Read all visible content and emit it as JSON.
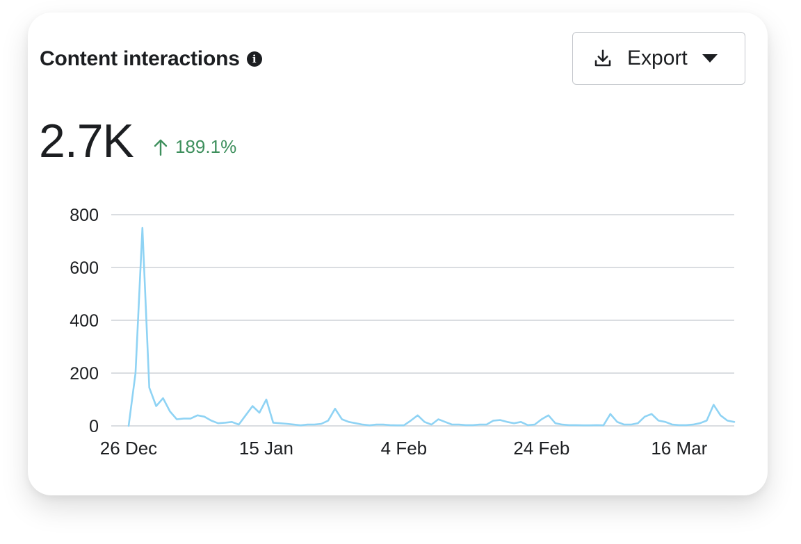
{
  "card": {
    "title": "Content interactions",
    "info_icon": "info-icon",
    "export_label": "Export",
    "export_icon": "download-icon",
    "dropdown_icon": "caret-down-icon",
    "total_value": "2.7K",
    "change_icon": "arrow-up-icon",
    "change_percent": "189.1%"
  },
  "colors": {
    "line": "#8fd3f4",
    "grid": "#dadde1",
    "positive": "#3d8f5c",
    "text": "#1c1e21"
  },
  "chart_data": {
    "type": "line",
    "title": "Content interactions",
    "xlabel": "",
    "ylabel": "",
    "ylim": [
      0,
      800
    ],
    "yticks": [
      "0",
      "200",
      "400",
      "600",
      "800"
    ],
    "xticks": [
      "26 Dec",
      "15 Jan",
      "4 Feb",
      "24 Feb",
      "16 Mar"
    ],
    "grid": true,
    "series": [
      {
        "name": "Content interactions",
        "values": [
          0,
          200,
          750,
          145,
          75,
          105,
          55,
          25,
          28,
          28,
          40,
          35,
          20,
          10,
          12,
          15,
          5,
          40,
          75,
          50,
          100,
          12,
          10,
          8,
          5,
          2,
          5,
          5,
          8,
          20,
          65,
          25,
          15,
          10,
          5,
          2,
          5,
          5,
          3,
          2,
          2,
          20,
          40,
          15,
          5,
          25,
          15,
          5,
          5,
          3,
          3,
          5,
          5,
          20,
          22,
          15,
          10,
          15,
          3,
          5,
          25,
          40,
          10,
          5,
          3,
          3,
          2,
          2,
          3,
          2,
          45,
          15,
          5,
          5,
          10,
          35,
          45,
          20,
          15,
          5,
          3,
          3,
          5,
          10,
          20,
          80,
          40,
          20,
          15
        ]
      }
    ]
  }
}
